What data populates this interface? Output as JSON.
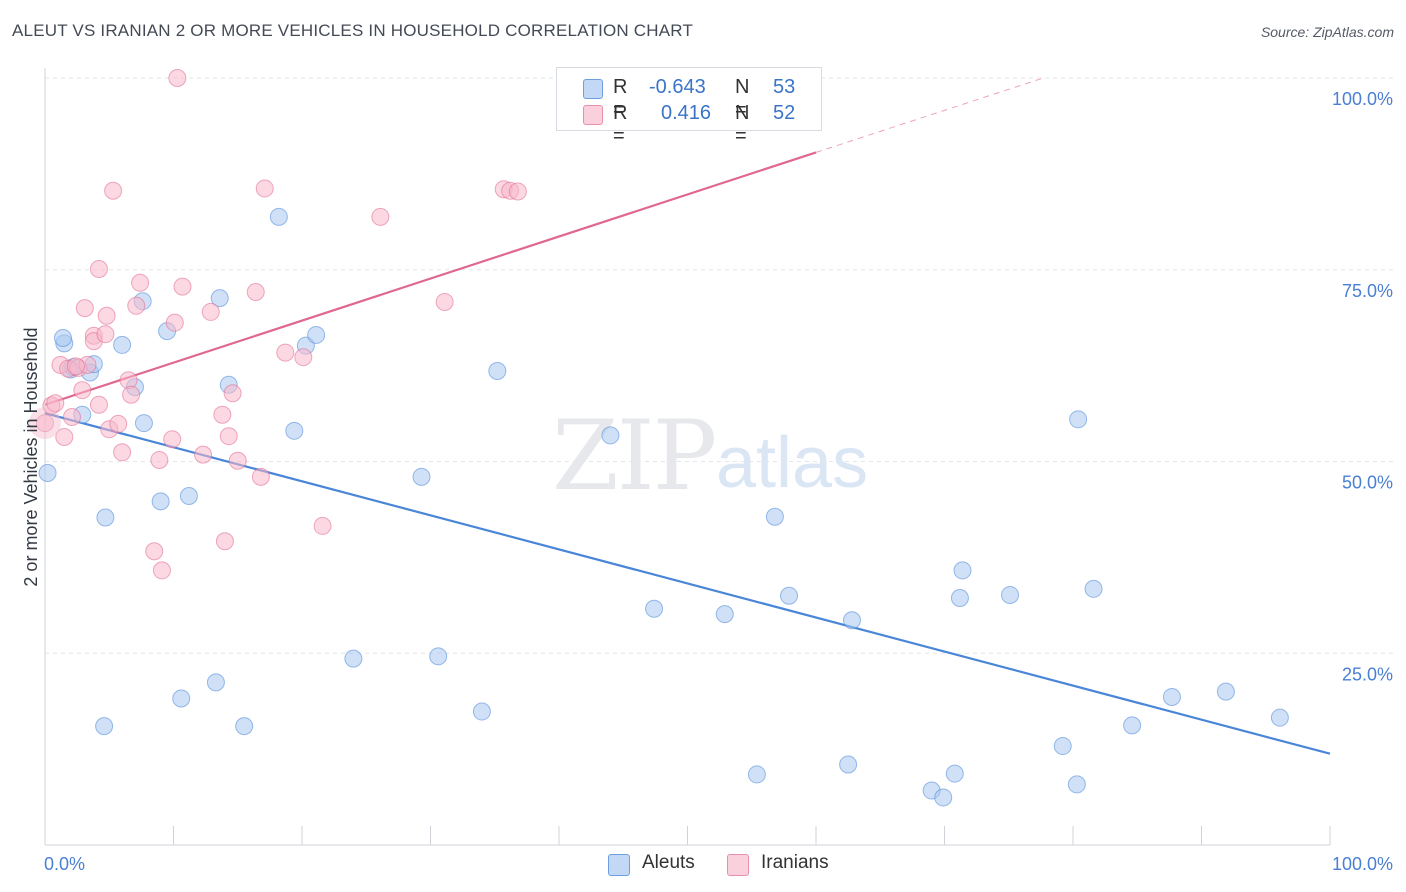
{
  "title": "ALEUT VS IRANIAN 2 OR MORE VEHICLES IN HOUSEHOLD CORRELATION CHART",
  "source": "Source: ZipAtlas.com",
  "watermark": {
    "zip": "ZIP",
    "atlas": "atlas"
  },
  "legend": {
    "rows": [
      {
        "r_label": "R =",
        "r_value": "-0.643",
        "n_label": "N =",
        "n_value": "53",
        "color": "#a9c8f0"
      },
      {
        "r_label": "R =",
        "r_value": "0.416",
        "n_label": "N =",
        "n_value": "52",
        "color": "#f7b8cb"
      }
    ]
  },
  "bottom_legend": [
    {
      "label": "Aleuts",
      "color": "#a9c8f0"
    },
    {
      "label": "Iranians",
      "color": "#f7b8cb"
    }
  ],
  "chart_data": {
    "type": "scatter",
    "title": "ALEUT VS IRANIAN 2 OR MORE VEHICLES IN HOUSEHOLD CORRELATION CHART",
    "xlabel": "",
    "ylabel": "2 or more Vehicles in Household",
    "xlim": [
      0,
      100
    ],
    "ylim": [
      0,
      100
    ],
    "x_tick_labels": [
      "0.0%",
      "100.0%"
    ],
    "y_ticks": [
      25,
      50,
      75,
      100
    ],
    "y_tick_labels": [
      "25.0%",
      "50.0%",
      "75.0%",
      "100.0%"
    ],
    "grid": true,
    "legend_position": "top-center",
    "series": [
      {
        "name": "Aleuts",
        "color": "#4a86d8",
        "fill": "#a9c8f0",
        "trend": {
          "x0": 0,
          "y0": 56.3,
          "x1": 100,
          "y1": 11.9,
          "dashed_from": null
        },
        "points": [
          [
            0.2,
            48.5
          ],
          [
            1.5,
            65.4
          ],
          [
            1.4,
            66.1
          ],
          [
            2.0,
            62.0
          ],
          [
            2.2,
            62.3
          ],
          [
            2.9,
            56.1
          ],
          [
            3.5,
            61.6
          ],
          [
            3.8,
            62.7
          ],
          [
            6.0,
            65.2
          ],
          [
            7.0,
            59.7
          ],
          [
            7.6,
            70.9
          ],
          [
            7.7,
            55.0
          ],
          [
            9.5,
            67.0
          ],
          [
            4.7,
            42.7
          ],
          [
            9.0,
            44.8
          ],
          [
            11.2,
            45.5
          ],
          [
            13.6,
            71.3
          ],
          [
            14.3,
            60.0
          ],
          [
            18.2,
            81.9
          ],
          [
            19.4,
            54.0
          ],
          [
            20.3,
            65.1
          ],
          [
            21.1,
            66.5
          ],
          [
            29.3,
            48.0
          ],
          [
            35.2,
            61.8
          ],
          [
            44.0,
            53.4
          ],
          [
            4.6,
            15.5
          ],
          [
            10.6,
            19.1
          ],
          [
            13.3,
            21.2
          ],
          [
            15.5,
            15.5
          ],
          [
            24.0,
            24.3
          ],
          [
            30.6,
            24.6
          ],
          [
            34.0,
            17.4
          ],
          [
            47.4,
            30.8
          ],
          [
            52.9,
            30.1
          ],
          [
            56.8,
            42.8
          ],
          [
            57.9,
            32.5
          ],
          [
            62.8,
            29.3
          ],
          [
            55.4,
            9.2
          ],
          [
            62.5,
            10.5
          ],
          [
            69.0,
            7.1
          ],
          [
            69.9,
            6.2
          ],
          [
            70.8,
            9.3
          ],
          [
            71.4,
            35.8
          ],
          [
            71.2,
            32.2
          ],
          [
            75.1,
            32.6
          ],
          [
            80.4,
            55.5
          ],
          [
            81.6,
            33.4
          ],
          [
            79.2,
            12.9
          ],
          [
            80.3,
            7.9
          ],
          [
            84.6,
            15.6
          ],
          [
            87.7,
            19.3
          ],
          [
            91.9,
            20.0
          ],
          [
            96.1,
            16.6
          ]
        ]
      },
      {
        "name": "Iranians",
        "color": "#e0688f",
        "fill": "#f7b8cb",
        "trend": {
          "x0": 0,
          "y0": 57.4,
          "x1": 60,
          "y1": 90.3,
          "dashed_from": 60
        },
        "points": [
          [
            0.0,
            55.0
          ],
          [
            0.5,
            57.3
          ],
          [
            0.8,
            57.6
          ],
          [
            1.2,
            62.6
          ],
          [
            1.5,
            53.2
          ],
          [
            1.8,
            62.1
          ],
          [
            2.1,
            55.8
          ],
          [
            2.6,
            62.2
          ],
          [
            2.9,
            59.3
          ],
          [
            3.1,
            70.0
          ],
          [
            3.3,
            62.6
          ],
          [
            3.8,
            66.4
          ],
          [
            3.8,
            65.7
          ],
          [
            4.2,
            57.4
          ],
          [
            4.2,
            75.1
          ],
          [
            4.7,
            66.6
          ],
          [
            4.8,
            69.0
          ],
          [
            5.0,
            54.2
          ],
          [
            5.3,
            85.3
          ],
          [
            5.7,
            54.9
          ],
          [
            6.0,
            51.2
          ],
          [
            6.5,
            60.6
          ],
          [
            6.7,
            58.7
          ],
          [
            7.1,
            70.3
          ],
          [
            7.4,
            73.3
          ],
          [
            8.5,
            38.3
          ],
          [
            8.9,
            50.2
          ],
          [
            9.1,
            35.8
          ],
          [
            9.9,
            52.9
          ],
          [
            10.1,
            68.1
          ],
          [
            10.3,
            100.0
          ],
          [
            10.7,
            72.8
          ],
          [
            12.3,
            50.9
          ],
          [
            12.9,
            69.5
          ],
          [
            13.8,
            56.1
          ],
          [
            14.0,
            39.6
          ],
          [
            14.3,
            53.3
          ],
          [
            14.6,
            58.9
          ],
          [
            15.0,
            50.1
          ],
          [
            16.4,
            72.1
          ],
          [
            16.8,
            48.0
          ],
          [
            17.1,
            85.6
          ],
          [
            18.7,
            64.2
          ],
          [
            20.1,
            63.6
          ],
          [
            21.6,
            41.6
          ],
          [
            26.1,
            81.9
          ],
          [
            31.1,
            70.8
          ],
          [
            35.7,
            85.5
          ],
          [
            36.2,
            85.3
          ],
          [
            36.8,
            85.2
          ],
          [
            54.2,
            100.0
          ],
          [
            2.4,
            62.4
          ]
        ]
      }
    ]
  }
}
